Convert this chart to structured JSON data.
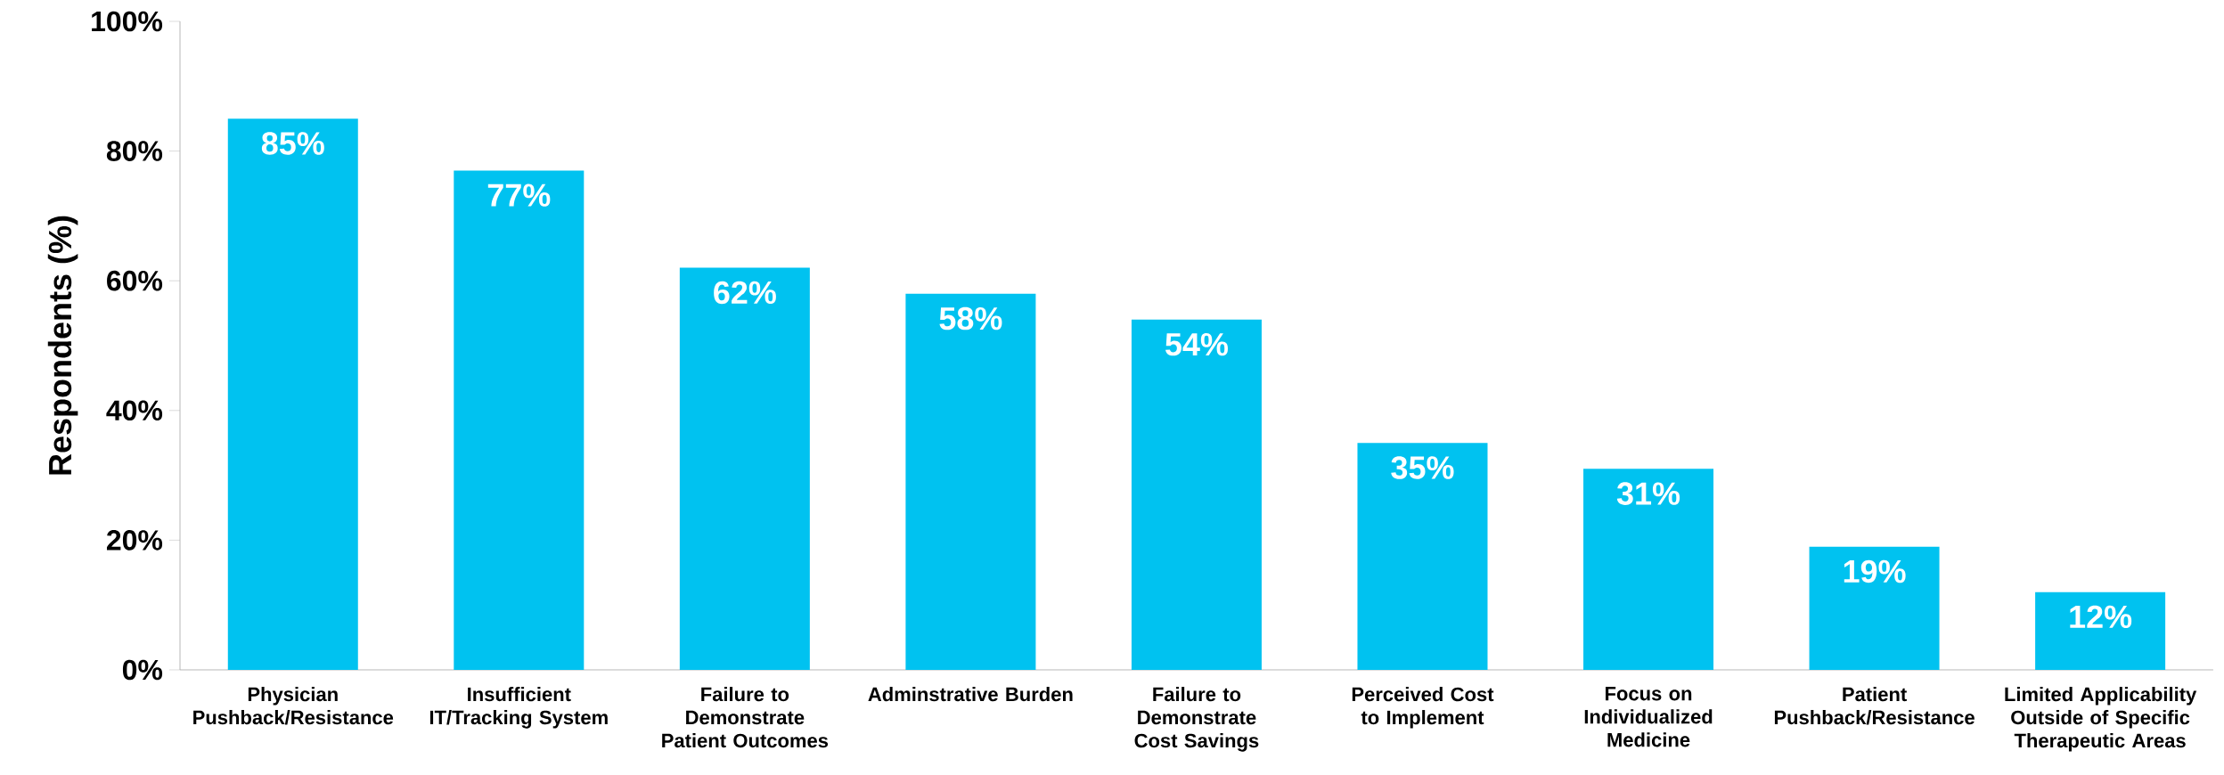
{
  "chart_data": {
    "type": "bar",
    "ylabel": "Respondents (%)",
    "categories": [
      "Physician Pushback/Resistance",
      "Insufficient IT/Tracking System",
      "Failure to Demonstrate Patient Outcomes",
      "Adminstrative Burden",
      "Failure to Demonstrate Cost Savings",
      "Perceived Cost to Implement",
      "Focus on Individualized Medicine",
      "Patient Pushback/Resistance",
      "Limited Applicability Outside of Specific Therapeutic Areas"
    ],
    "values": [
      85,
      77,
      62,
      58,
      54,
      35,
      31,
      19,
      12
    ],
    "value_labels": [
      "85%",
      "77%",
      "62%",
      "58%",
      "54%",
      "35%",
      "31%",
      "19%",
      "12%"
    ],
    "color": "#00c2f0",
    "ylim": [
      0,
      100
    ],
    "yticks": [
      {
        "value": 0,
        "label": "0%"
      },
      {
        "value": 20,
        "label": "20%"
      },
      {
        "value": 40,
        "label": "40%"
      },
      {
        "value": 60,
        "label": "60%"
      },
      {
        "value": 80,
        "label": "80%"
      },
      {
        "value": 100,
        "label": "100%"
      }
    ],
    "grid": false
  }
}
